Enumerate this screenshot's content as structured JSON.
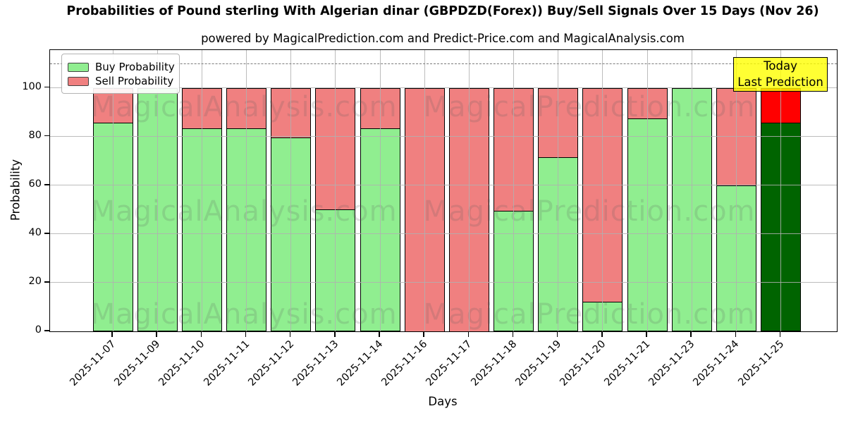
{
  "header": {
    "title": "Probabilities of Pound sterling With Algerian dinar (GBPDZD(Forex)) Buy/Sell Signals Over 15 Days (Nov 26)",
    "subtitle": "powered by MagicalPrediction.com and Predict-Price.com and MagicalAnalysis.com"
  },
  "chart_data": {
    "type": "bar",
    "stacked": true,
    "title": "Probabilities of Pound sterling With Algerian dinar (GBPDZD(Forex)) Buy/Sell Signals Over 15 Days (Nov 26)",
    "xlabel": "Days",
    "ylabel": "Probability",
    "categories": [
      "2025-11-07",
      "2025-11-09",
      "2025-11-10",
      "2025-11-11",
      "2025-11-12",
      "2025-11-13",
      "2025-11-14",
      "2025-11-16",
      "2025-11-17",
      "2025-11-18",
      "2025-11-19",
      "2025-11-20",
      "2025-11-21",
      "2025-11-23",
      "2025-11-24",
      "2025-11-25"
    ],
    "series": [
      {
        "name": "Buy Probability",
        "color": "#90EE90",
        "values": [
          85.7,
          100,
          83.3,
          83.3,
          79.6,
          50,
          83.3,
          0,
          0,
          49.4,
          71.4,
          12.3,
          87.5,
          100,
          59.8,
          85.7
        ]
      },
      {
        "name": "Sell Probability",
        "color": "#F08080",
        "values": [
          14.3,
          0,
          16.7,
          16.7,
          20.4,
          50,
          16.7,
          100,
          100,
          50.6,
          28.6,
          87.7,
          12.5,
          0,
          40.2,
          14.3
        ]
      }
    ],
    "today_bar": {
      "category": "2025-11-25",
      "buy_color": "#006400",
      "sell_color": "#FF0000"
    },
    "yticks": [
      0,
      20,
      40,
      60,
      80,
      100
    ],
    "ylim": [
      0,
      115.5
    ],
    "dashed_line_y": 110,
    "grid": true,
    "legend_position": "upper-left"
  },
  "legend": {
    "items": [
      {
        "label": "Buy Probability",
        "color": "#90EE90"
      },
      {
        "label": "Sell Probability",
        "color": "#F08080"
      }
    ]
  },
  "annotation": {
    "line1": "Today",
    "line2": "Last Prediction",
    "bg_color": "#FFFF00"
  },
  "watermarks": {
    "left": "MagicalAnalysis.com",
    "right": "MagicalPrediction.com"
  }
}
